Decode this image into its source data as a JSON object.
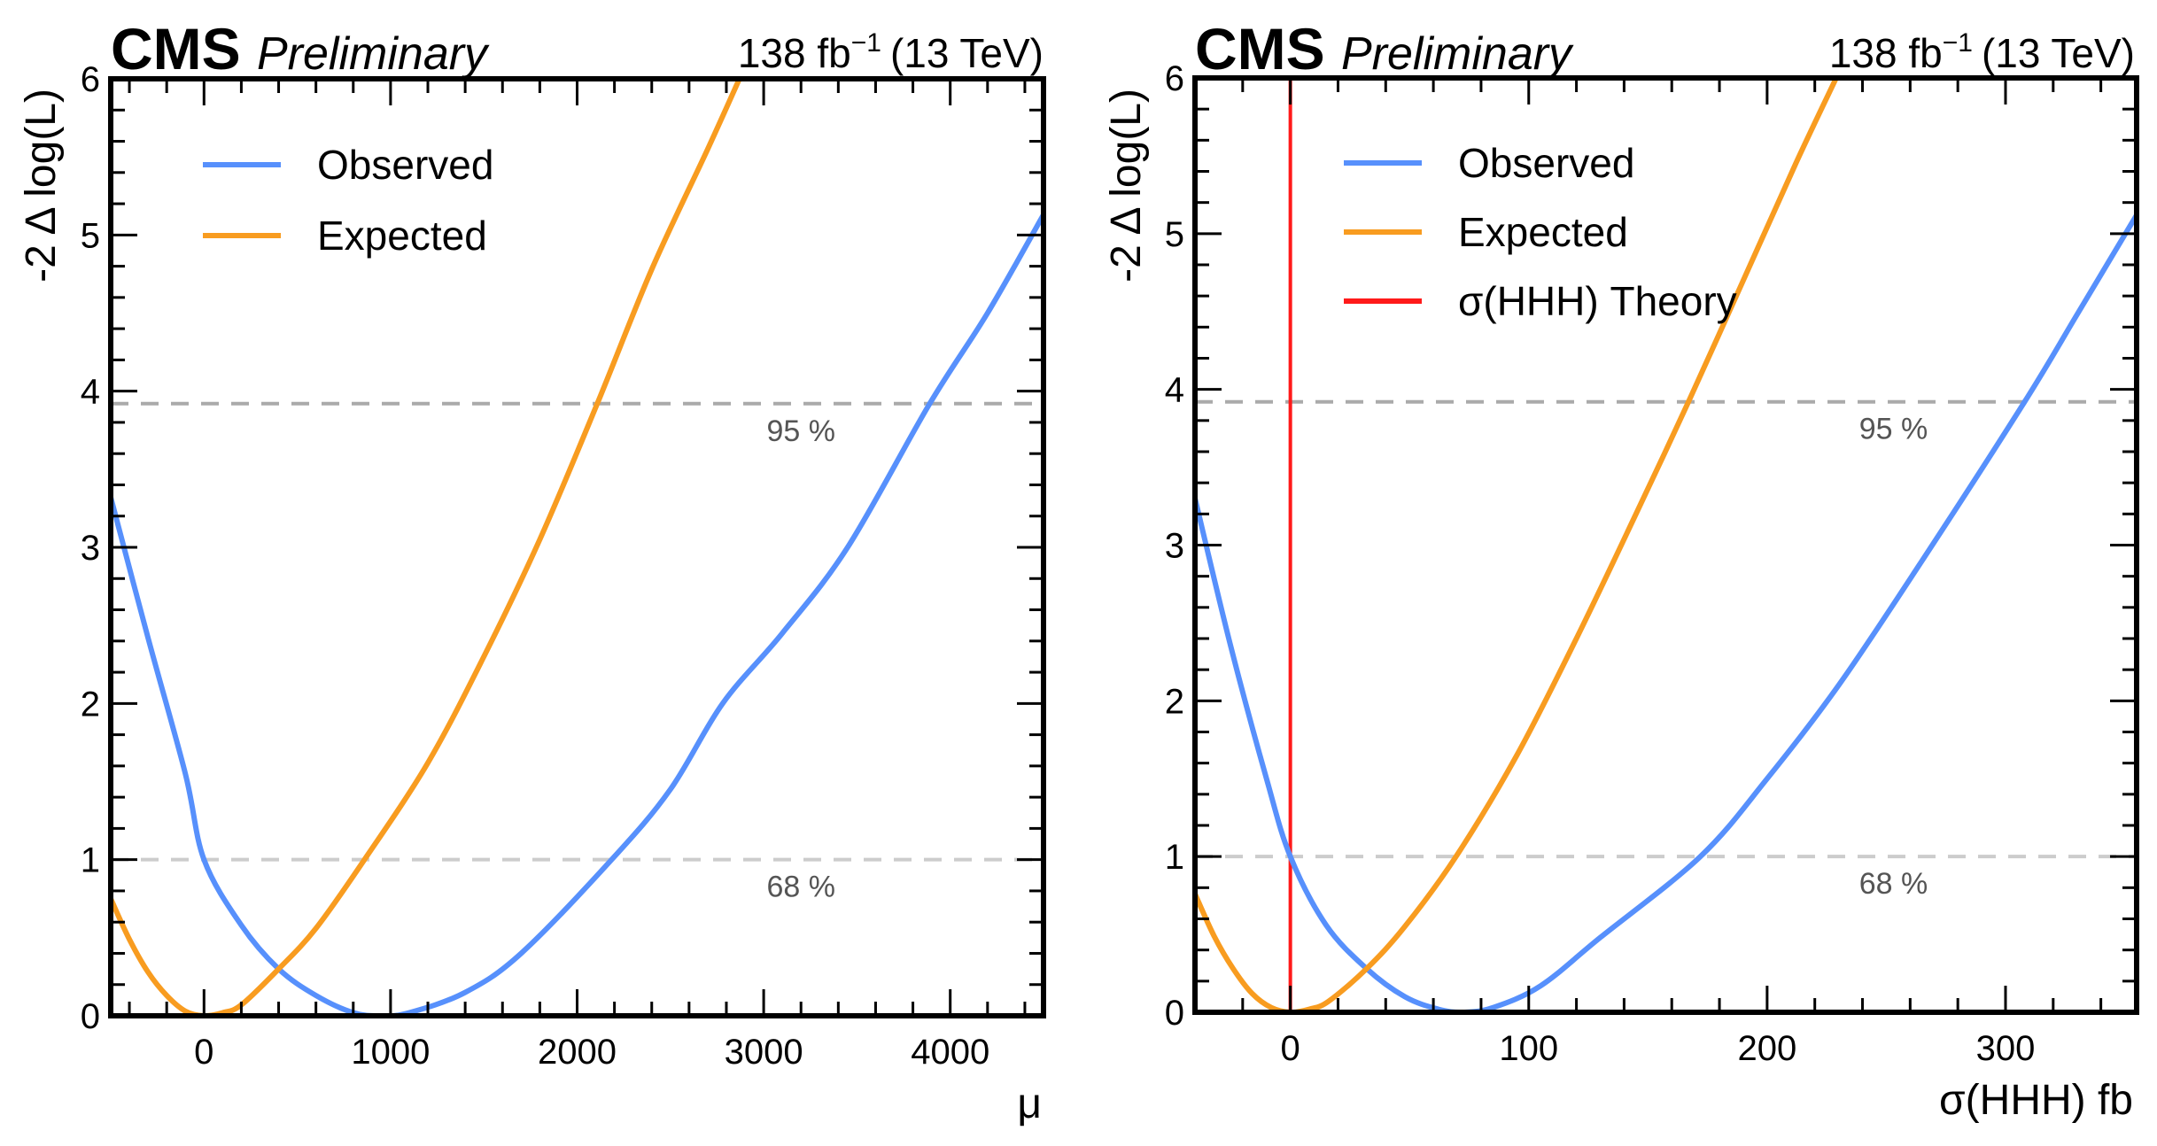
{
  "figure": {
    "experiment_label": "CMS",
    "status_label": "Preliminary",
    "lumi_label": "138 fb",
    "lumi_exponent": "−1",
    "energy_label": "(13 TeV)"
  },
  "colors": {
    "observed": "#5790fc",
    "expected": "#f89c20",
    "theory": "#ff1a1a",
    "cl95_line": "#aaaaaa",
    "cl68_line": "#cccccc",
    "cl_text": "#555555",
    "frame": "#000000"
  },
  "chart_data": [
    {
      "type": "line",
      "title": "",
      "xlabel": "μ",
      "ylabel": "-2 Δ log(L)",
      "xlim": [
        -500,
        4500
      ],
      "ylim": [
        0,
        6
      ],
      "grid": false,
      "legend_position": "top-left",
      "x_major_ticks": [
        0,
        1000,
        2000,
        3000,
        4000
      ],
      "x_tick_labels": [
        "0",
        "1000",
        "2000",
        "3000",
        "4000"
      ],
      "x_minor_step": 200,
      "y_major_ticks": [
        0,
        1,
        2,
        3,
        4,
        5,
        6
      ],
      "y_tick_labels": [
        "0",
        "1",
        "2",
        "3",
        "4",
        "5",
        "6"
      ],
      "y_minor_step": 0.2,
      "reference_lines": [
        {
          "name": "68 %",
          "y": 1.0,
          "label": "68 %",
          "label_x": 3200
        },
        {
          "name": "95 %",
          "y": 3.92,
          "label": "95 %",
          "label_x": 3200
        }
      ],
      "series": [
        {
          "name": "Observed",
          "color_key": "observed",
          "x": [
            -500,
            -300,
            -100,
            0,
            200,
            400,
            600,
            800,
            950,
            1100,
            1400,
            1700,
            2185,
            2500,
            2780,
            3100,
            3450,
            3890,
            4200,
            4500
          ],
          "y": [
            3.32,
            2.42,
            1.55,
            1.0,
            0.58,
            0.3,
            0.13,
            0.02,
            0.0,
            0.02,
            0.15,
            0.4,
            1.0,
            1.45,
            2.0,
            2.45,
            3.0,
            3.92,
            4.5,
            5.13
          ]
        },
        {
          "name": "Expected",
          "color_key": "expected",
          "x": [
            -500,
            -400,
            -300,
            -200,
            -100,
            0,
            100,
            200,
            400,
            600,
            860,
            1200,
            1500,
            1800,
            2108,
            2400,
            2700,
            2870
          ],
          "y": [
            0.75,
            0.49,
            0.28,
            0.13,
            0.03,
            0.0,
            0.02,
            0.07,
            0.3,
            0.56,
            1.0,
            1.62,
            2.3,
            3.05,
            3.92,
            4.78,
            5.55,
            6.0
          ]
        }
      ],
      "vertical_lines": []
    },
    {
      "type": "line",
      "title": "",
      "xlabel": "σ(HHH) fb",
      "ylabel": "-2 Δ log(L)",
      "xlim": [
        -40,
        355
      ],
      "ylim": [
        0,
        6
      ],
      "grid": false,
      "legend_position": "top-left",
      "x_major_ticks": [
        0,
        100,
        200,
        300
      ],
      "x_tick_labels": [
        "0",
        "100",
        "200",
        "300"
      ],
      "x_minor_step": 20,
      "y_major_ticks": [
        0,
        1,
        2,
        3,
        4,
        5,
        6
      ],
      "y_tick_labels": [
        "0",
        "1",
        "2",
        "3",
        "4",
        "5",
        "6"
      ],
      "y_minor_step": 0.2,
      "reference_lines": [
        {
          "name": "68 %",
          "y": 1.0,
          "label": "68 %",
          "label_x": 253
        },
        {
          "name": "95 %",
          "y": 3.92,
          "label": "95 %",
          "label_x": 253
        }
      ],
      "series": [
        {
          "name": "Observed",
          "color_key": "observed",
          "x": [
            -40,
            -25,
            -10,
            0,
            15,
            32,
            48,
            62,
            72.5,
            85,
            105,
            130,
            172,
            200,
            230,
            265,
            308,
            330,
            355
          ],
          "y": [
            3.3,
            2.35,
            1.5,
            1.0,
            0.56,
            0.28,
            0.1,
            0.02,
            0.0,
            0.03,
            0.17,
            0.48,
            1.0,
            1.5,
            2.1,
            2.9,
            3.92,
            4.48,
            5.12
          ]
        },
        {
          "name": "Expected",
          "color_key": "expected",
          "x": [
            -40,
            -32,
            -24,
            -16,
            -8,
            0,
            8,
            16,
            32,
            48,
            69.5,
            95,
            120,
            145,
            167,
            190,
            212,
            229
          ],
          "y": [
            0.76,
            0.49,
            0.28,
            0.12,
            0.03,
            0.0,
            0.02,
            0.07,
            0.28,
            0.55,
            1.0,
            1.65,
            2.4,
            3.2,
            3.92,
            4.7,
            5.45,
            6.0
          ]
        }
      ],
      "vertical_lines": [
        {
          "name": "σ(HHH) Theory",
          "x": 0,
          "color_key": "theory"
        }
      ]
    }
  ],
  "legends": [
    {
      "entries": [
        {
          "label": "Observed",
          "color_key": "observed"
        },
        {
          "label": "Expected",
          "color_key": "expected"
        }
      ]
    },
    {
      "entries": [
        {
          "label": "Observed",
          "color_key": "observed"
        },
        {
          "label": "Expected",
          "color_key": "expected"
        },
        {
          "label": "σ(HHH) Theory",
          "color_key": "theory"
        }
      ]
    }
  ]
}
